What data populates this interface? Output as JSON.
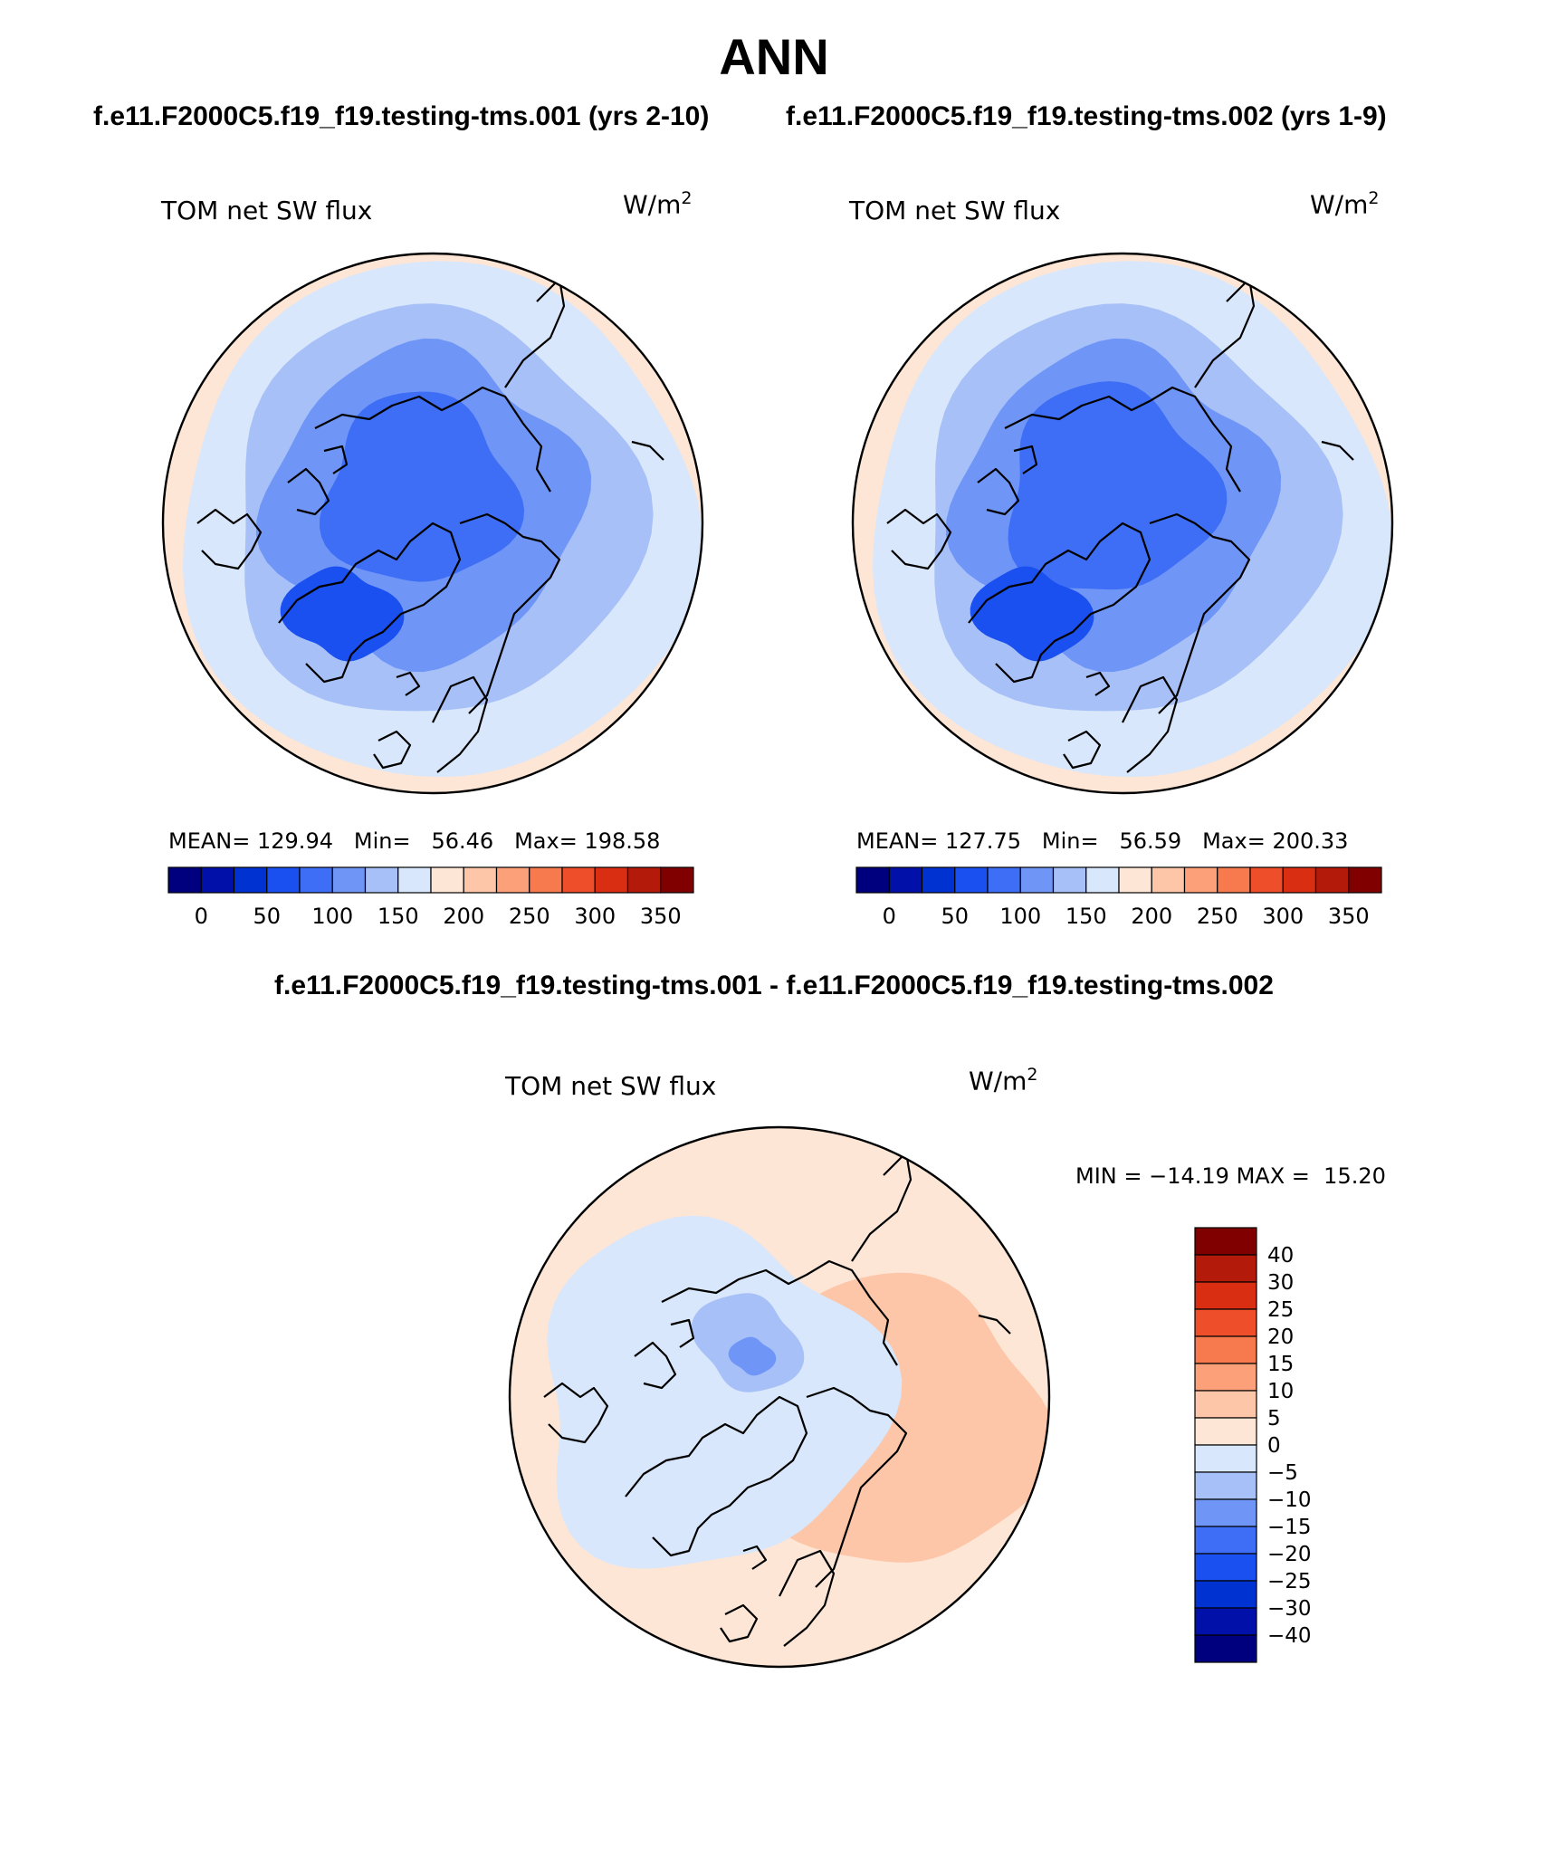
{
  "title": "ANN",
  "chart_data": [
    {
      "type": "heatmap",
      "projection": "north polar stereographic",
      "case": "f.e11.F2000C5.f19_f19.testing-tms.001 (yrs 2-10)",
      "variable": "TOM net SW flux",
      "units_base": "W/m",
      "units_exp": "2",
      "stats": {
        "mean_label": "MEAN=",
        "mean": "129.94",
        "min_label": "Min=",
        "min": "56.46",
        "max_label": "Max=",
        "max": "198.58"
      },
      "colorbar": {
        "labels": [
          "0",
          "50",
          "100",
          "150",
          "200",
          "250",
          "300",
          "350"
        ],
        "colors": [
          "#00007f",
          "#0010a8",
          "#0032d2",
          "#1a4ff0",
          "#3d6ef5",
          "#6f96f7",
          "#a7c0f8",
          "#d8e7fb",
          "#fde6d6",
          "#fdc6a8",
          "#fba078",
          "#f77a4f",
          "#ee4f2a",
          "#d92e12",
          "#b41a0a",
          "#800000"
        ]
      }
    },
    {
      "type": "heatmap",
      "projection": "north polar stereographic",
      "case": "f.e11.F2000C5.f19_f19.testing-tms.002 (yrs 1-9)",
      "variable": "TOM net SW flux",
      "units_base": "W/m",
      "units_exp": "2",
      "stats": {
        "mean_label": "MEAN=",
        "mean": "127.75",
        "min_label": "Min=",
        "min": "56.59",
        "max_label": "Max=",
        "max": "200.33"
      },
      "colorbar": {
        "labels": [
          "0",
          "50",
          "100",
          "150",
          "200",
          "250",
          "300",
          "350"
        ],
        "colors": [
          "#00007f",
          "#0010a8",
          "#0032d2",
          "#1a4ff0",
          "#3d6ef5",
          "#6f96f7",
          "#a7c0f8",
          "#d8e7fb",
          "#fde6d6",
          "#fdc6a8",
          "#fba078",
          "#f77a4f",
          "#ee4f2a",
          "#d92e12",
          "#b41a0a",
          "#800000"
        ]
      }
    },
    {
      "type": "heatmap",
      "projection": "north polar stereographic",
      "case": "f.e11.F2000C5.f19_f19.testing-tms.001 - f.e11.F2000C5.f19_f19.testing-tms.002",
      "variable": "TOM net SW flux",
      "units_base": "W/m",
      "units_exp": "2",
      "stats": {
        "min_label": "MIN =",
        "min": "−14.19",
        "max_label": "MAX =",
        "max": "15.20"
      },
      "colorbar": {
        "labels": [
          "40",
          "30",
          "25",
          "20",
          "15",
          "10",
          "5",
          "0",
          "−5",
          "−10",
          "−15",
          "−20",
          "−25",
          "−30",
          "−40"
        ],
        "colors": [
          "#800000",
          "#b41a0a",
          "#d92e12",
          "#ee4f2a",
          "#f77a4f",
          "#fba078",
          "#fdc6a8",
          "#fde6d6",
          "#d8e7fb",
          "#a7c0f8",
          "#6f96f7",
          "#3d6ef5",
          "#1a4ff0",
          "#0032d2",
          "#0010a8",
          "#00007f"
        ]
      }
    }
  ]
}
